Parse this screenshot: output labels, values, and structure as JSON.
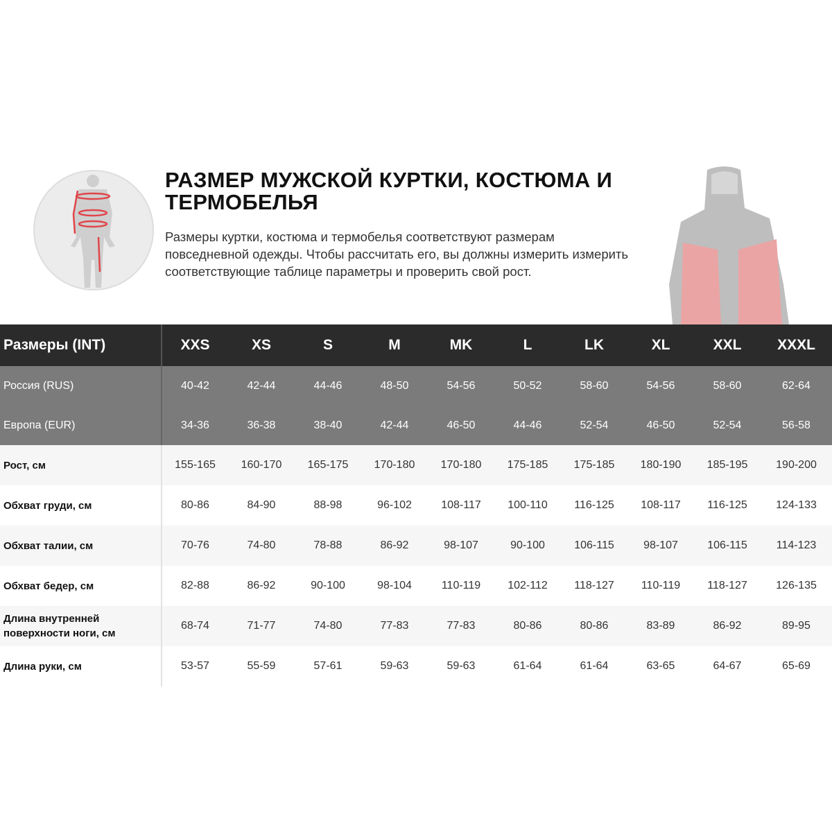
{
  "heading": {
    "title": "Размер мужской куртки, костюма и термобелья",
    "description": "Размеры куртки, костюма и термобелья соответствуют размерам повседневной одежды. Чтобы рассчитать его, вы должны измерить измерить соответствующие таблице параметры и проверить свой рост."
  },
  "colors": {
    "header_bg": "#2b2b2b",
    "region_bg": "#7b7b7b",
    "accent": "#e0454a"
  },
  "table": {
    "header_label": "Размеры (INT)",
    "sizes": [
      "XXS",
      "XS",
      "S",
      "M",
      "MK",
      "L",
      "LK",
      "XL",
      "XXL",
      "XXXL"
    ],
    "region_rows": [
      {
        "label": "Россия (RUS)",
        "values": [
          "40-42",
          "42-44",
          "44-46",
          "48-50",
          "54-56",
          "50-52",
          "58-60",
          "54-56",
          "58-60",
          "62-64"
        ]
      },
      {
        "label": "Европа (EUR)",
        "values": [
          "34-36",
          "36-38",
          "38-40",
          "42-44",
          "46-50",
          "44-46",
          "52-54",
          "46-50",
          "52-54",
          "56-58"
        ]
      }
    ],
    "rows": [
      {
        "label": "Рост, см",
        "values": [
          "155-165",
          "160-170",
          "165-175",
          "170-180",
          "170-180",
          "175-185",
          "175-185",
          "180-190",
          "185-195",
          "190-200"
        ]
      },
      {
        "label": "Обхват груди, см",
        "values": [
          "80-86",
          "84-90",
          "88-98",
          "96-102",
          "108-117",
          "100-110",
          "116-125",
          "108-117",
          "116-125",
          "124-133"
        ]
      },
      {
        "label": "Обхват талии, см",
        "values": [
          "70-76",
          "74-80",
          "78-88",
          "86-92",
          "98-107",
          "90-100",
          "106-115",
          "98-107",
          "106-115",
          "114-123"
        ]
      },
      {
        "label": "Обхват бедер, см",
        "values": [
          "82-88",
          "86-92",
          "90-100",
          "98-104",
          "110-119",
          "102-112",
          "118-127",
          "110-119",
          "118-127",
          "126-135"
        ]
      },
      {
        "label": "Длина внутренней поверхности ноги, см",
        "values": [
          "68-74",
          "71-77",
          "74-80",
          "77-83",
          "77-83",
          "80-86",
          "80-86",
          "83-89",
          "86-92",
          "89-95"
        ]
      },
      {
        "label": "Длина руки, см",
        "values": [
          "53-57",
          "55-59",
          "57-61",
          "59-63",
          "59-63",
          "61-64",
          "61-64",
          "63-65",
          "64-67",
          "65-69"
        ]
      }
    ]
  }
}
